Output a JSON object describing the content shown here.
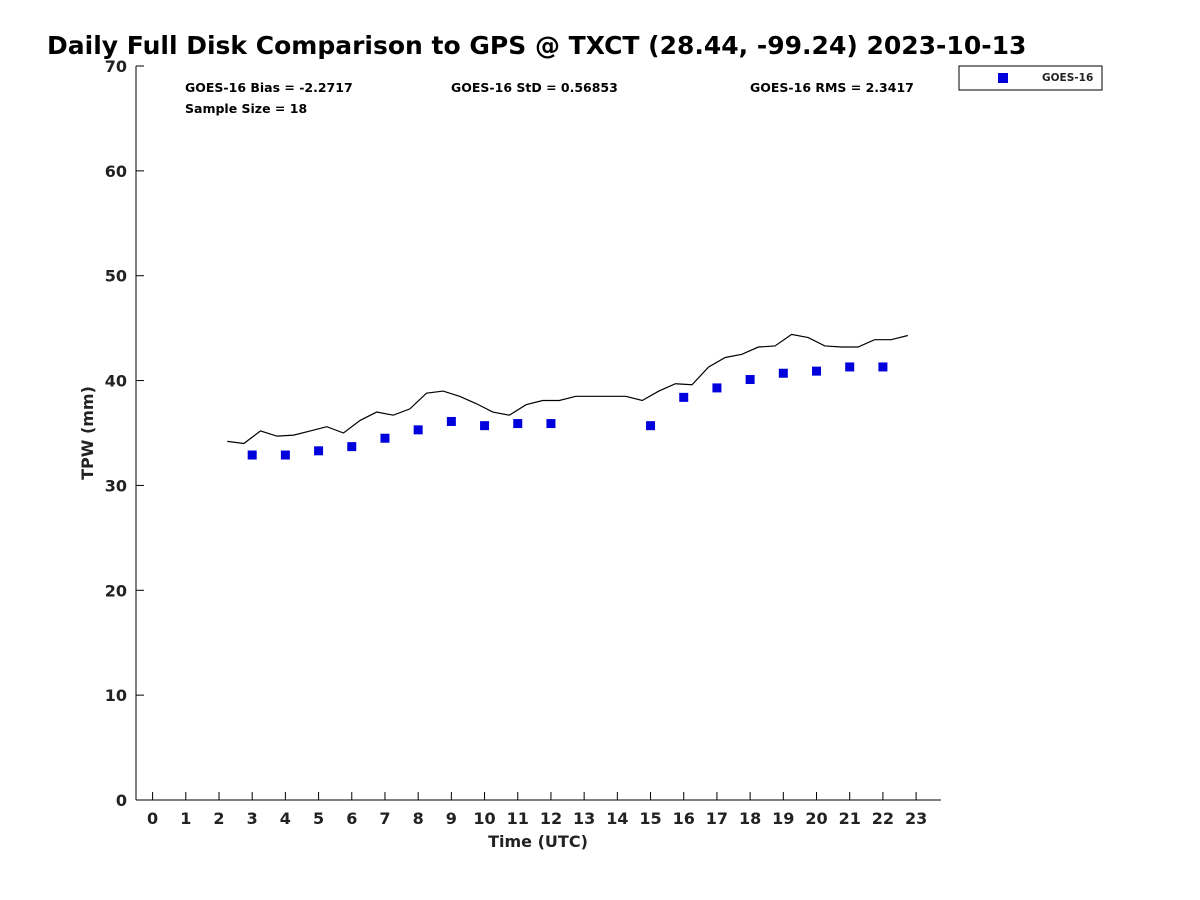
{
  "chart_data": {
    "type": "scatter",
    "title": "Daily Full Disk Comparison to GPS @ TXCT (28.44, -99.24) 2023-10-13",
    "xlabel": "Time (UTC)",
    "ylabel": "TPW (mm)",
    "xlim": [
      -0.5,
      23.75
    ],
    "ylim": [
      0,
      70
    ],
    "xticks": [
      0,
      1,
      2,
      3,
      4,
      5,
      6,
      7,
      8,
      9,
      10,
      11,
      12,
      13,
      14,
      15,
      16,
      17,
      18,
      19,
      20,
      21,
      22,
      23
    ],
    "yticks": [
      0,
      10,
      20,
      30,
      40,
      50,
      60,
      70
    ],
    "grid": false,
    "legend_position": "top-right-outside",
    "stats": {
      "bias": "GOES-16 Bias = -2.2717",
      "std": "GOES-16 StD = 0.56853",
      "rms": "GOES-16 RMS = 2.3417",
      "sample": "Sample Size = 18"
    },
    "series": [
      {
        "name": "GOES-16",
        "kind": "marker",
        "color": "#0000dd",
        "x": [
          3,
          4,
          5,
          6,
          7,
          8,
          9,
          10,
          11,
          12,
          15,
          16,
          17,
          18,
          19,
          20,
          21,
          22
        ],
        "y": [
          32.9,
          32.9,
          33.3,
          33.7,
          34.5,
          35.3,
          36.1,
          35.7,
          35.9,
          35.9,
          35.7,
          38.4,
          39.3,
          40.1,
          40.7,
          40.9,
          41.3,
          41.3
        ]
      },
      {
        "kind": "line",
        "color": "#000000",
        "x": [
          2.25,
          2.75,
          3.25,
          3.75,
          4.25,
          4.75,
          5.25,
          5.75,
          6.25,
          6.75,
          7.25,
          7.75,
          8.25,
          8.75,
          9.25,
          9.75,
          10.25,
          10.75,
          11.25,
          11.75,
          12.25,
          12.75,
          13.25,
          13.75,
          14.25,
          14.75,
          15.25,
          15.75,
          16.25,
          16.75,
          17.25,
          17.75,
          18.25,
          18.75,
          19.25,
          19.75,
          20.25,
          20.75,
          21.25,
          21.75,
          22.25,
          22.75
        ],
        "y": [
          34.2,
          34.0,
          35.2,
          34.7,
          34.8,
          35.2,
          35.6,
          35.0,
          36.2,
          37.0,
          36.7,
          37.3,
          38.8,
          39.0,
          38.5,
          37.8,
          37.0,
          36.7,
          37.7,
          38.1,
          38.1,
          38.5,
          38.5,
          38.5,
          38.5,
          38.1,
          39.0,
          39.7,
          39.6,
          41.3,
          42.2,
          42.5,
          43.2,
          43.3,
          44.4,
          44.1,
          43.3,
          43.2,
          43.2,
          43.9,
          43.9,
          44.3
        ]
      }
    ]
  }
}
